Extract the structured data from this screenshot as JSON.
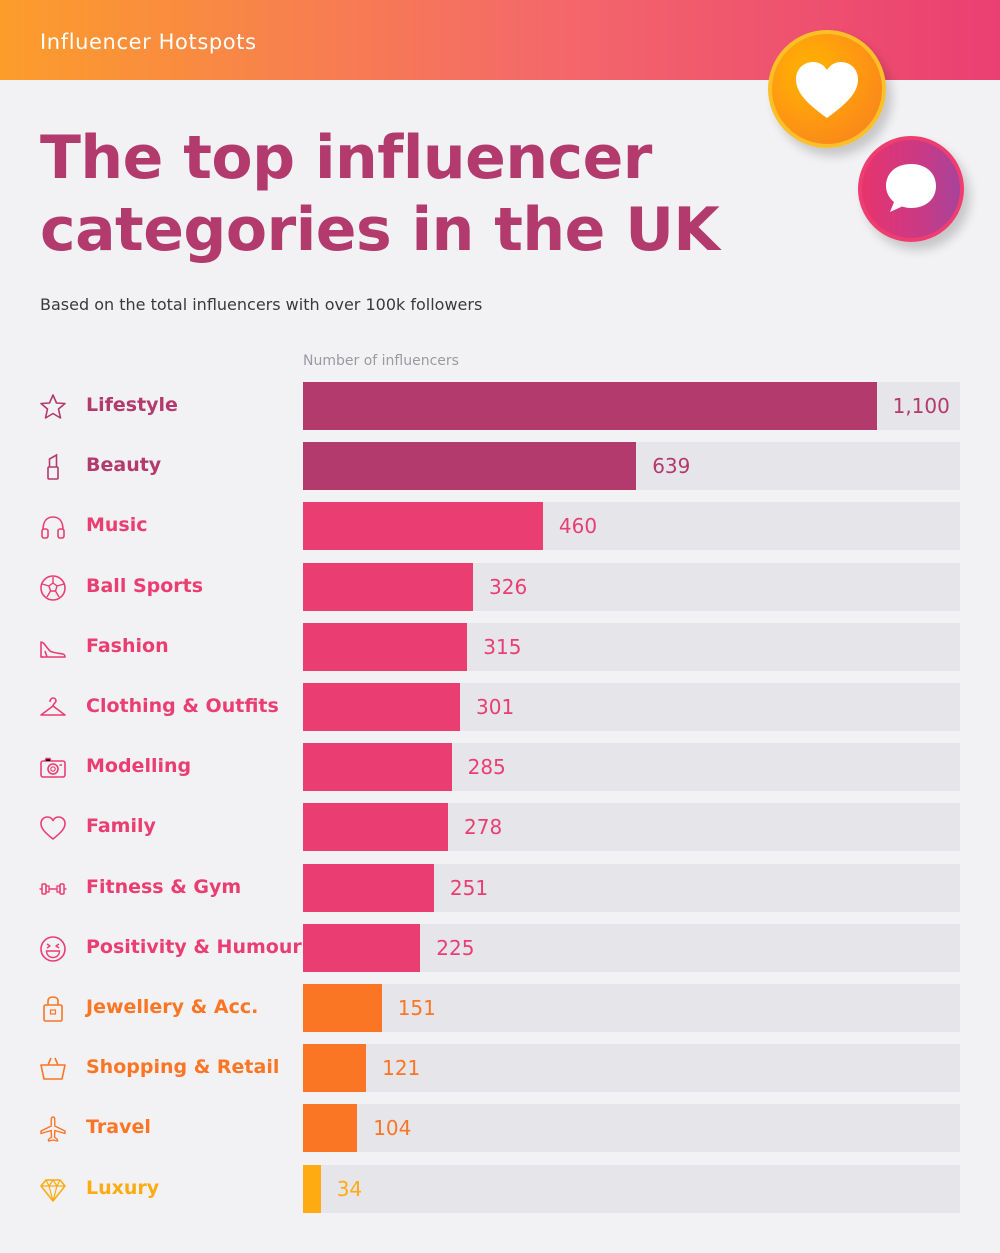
{
  "header": {
    "brand": "Influencer Hotspots"
  },
  "colors": {
    "plum": "#b23a6d",
    "pink": "#ea3e72",
    "orange": "#fa7524",
    "amber": "#fdab10",
    "track": "#e6e5ea"
  },
  "decorations": [
    {
      "icon": "heart-icon"
    },
    {
      "icon": "chat-bubble-icon"
    }
  ],
  "chart_data": {
    "type": "bar",
    "orientation": "horizontal",
    "title": "The top influencer categories in the UK",
    "subtitle": "Based on the total influencers with over 100k followers",
    "xlabel": "Number of influencers",
    "xlim": [
      0,
      1260
    ],
    "grid": false,
    "categories": [
      "Lifestyle",
      "Beauty",
      "Music",
      "Ball Sports",
      "Fashion",
      "Clothing & Outfits",
      "Modelling",
      "Family",
      "Fitness & Gym",
      "Positivity & Humour",
      "Jewellery & Acc.",
      "Shopping & Retail",
      "Travel",
      "Luxury"
    ],
    "values": [
      1100,
      639,
      460,
      326,
      315,
      301,
      285,
      278,
      251,
      225,
      151,
      121,
      104,
      34
    ],
    "value_labels": [
      "1,100",
      "639",
      "460",
      "326",
      "315",
      "301",
      "285",
      "278",
      "251",
      "225",
      "151",
      "121",
      "104",
      "34"
    ],
    "icons": [
      "star-icon",
      "lipstick-icon",
      "headphones-icon",
      "football-icon",
      "high-heel-icon",
      "hanger-icon",
      "camera-icon",
      "heart-outline-icon",
      "dumbbell-icon",
      "laughing-face-icon",
      "handbag-icon",
      "basket-icon",
      "airplane-icon",
      "diamond-icon"
    ],
    "bar_colors": [
      "#b23a6d",
      "#b23a6d",
      "#ea3e72",
      "#ea3e72",
      "#ea3e72",
      "#ea3e72",
      "#ea3e72",
      "#ea3e72",
      "#ea3e72",
      "#ea3e72",
      "#fa7524",
      "#fa7524",
      "#fa7524",
      "#fdab10"
    ]
  }
}
